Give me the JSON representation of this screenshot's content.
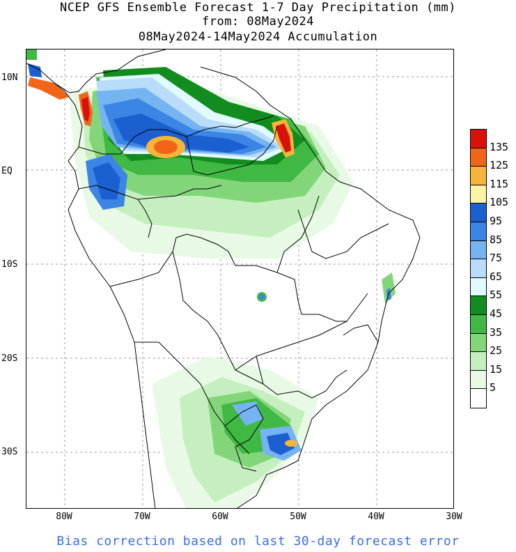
{
  "title": {
    "line1": "NCEP GFS Ensemble Forecast 1-7 Day Precipitation (mm)",
    "line2": "from: 08May2024",
    "line3": "08May2024-14May2024 Accumulation"
  },
  "axes": {
    "lat_labels": [
      "10N",
      "EQ",
      "10S",
      "20S",
      "30S"
    ],
    "lon_labels": [
      "80W",
      "70W",
      "60W",
      "50W",
      "40W",
      "30W"
    ]
  },
  "legend": {
    "labels": [
      "135",
      "125",
      "115",
      "105",
      "95",
      "85",
      "75",
      "65",
      "55",
      "45",
      "35",
      "25",
      "15",
      "5"
    ],
    "colors": [
      "#d8120b",
      "#f26418",
      "#f6b43a",
      "#fdf3a4",
      "#1c5fd0",
      "#3b85e4",
      "#76b4f1",
      "#b9dcfb",
      "#e1fafc",
      "#128c1e",
      "#3fb943",
      "#83d57a",
      "#c5efbe",
      "#e8fae6",
      "#ffffff"
    ]
  },
  "footnote": "Bias correction based on last 30-day forecast error"
}
